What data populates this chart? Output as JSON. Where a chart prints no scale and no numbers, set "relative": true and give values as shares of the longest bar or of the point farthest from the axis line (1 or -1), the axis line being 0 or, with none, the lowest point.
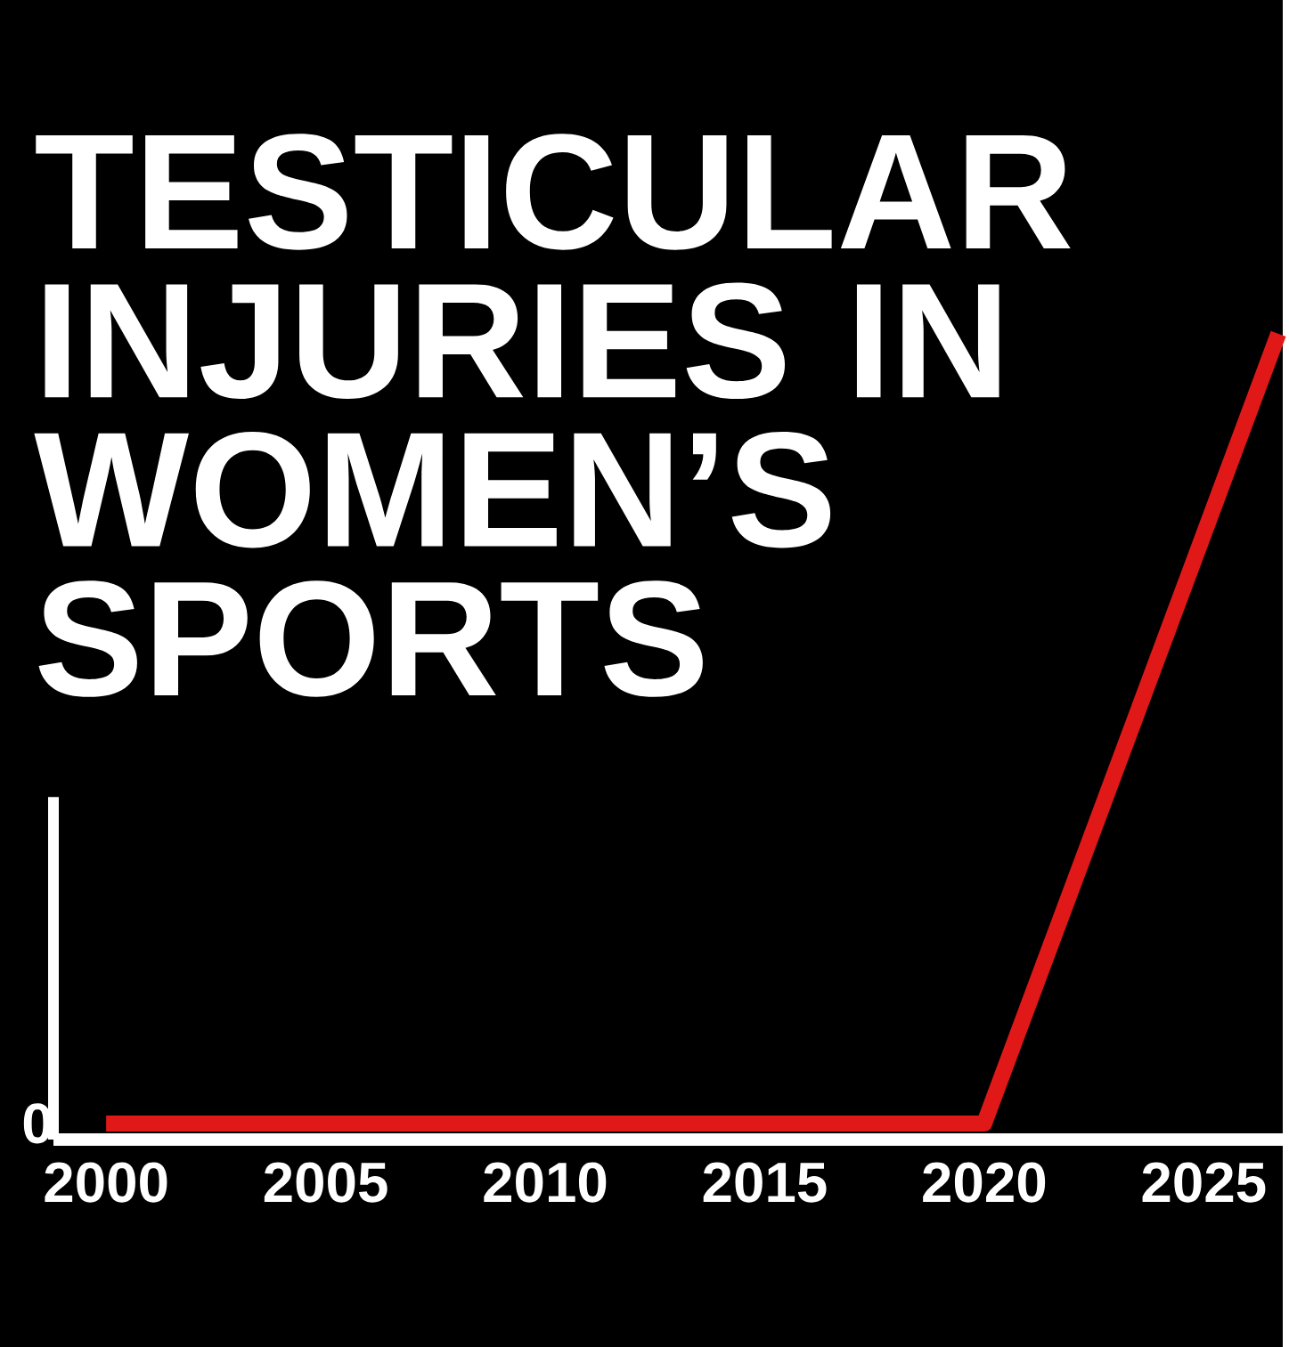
{
  "chart_data": {
    "type": "line",
    "title": "TESTICULAR INJURIES IN WOMEN’S SPORTS",
    "x": [
      2000,
      2020,
      2026.7
    ],
    "series": [
      {
        "color": "#e01818",
        "values": [
          0.02,
          0.02,
          1
        ]
      }
    ],
    "relative": true,
    "xlim": [
      1998.8,
      2026.8
    ],
    "xticks": [
      2000,
      2005,
      2010,
      2015,
      2020,
      2025
    ],
    "annotations": [
      "0"
    ],
    "marker": "none",
    "line_style": "solid"
  }
}
